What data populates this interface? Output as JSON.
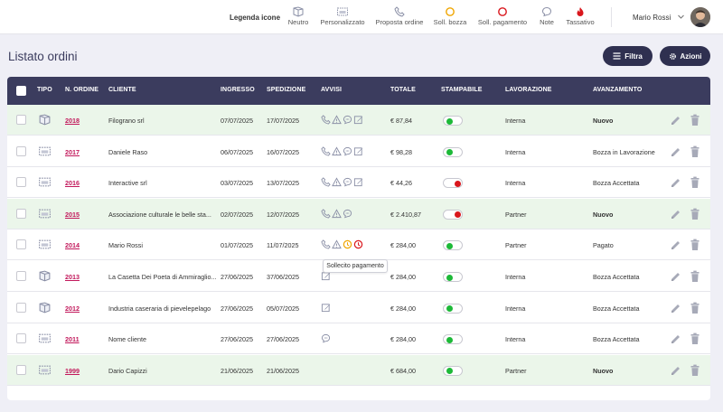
{
  "legend": {
    "title": "Legenda icone",
    "items": [
      {
        "label": "Neutro",
        "icon": "truck-icon"
      },
      {
        "label": "Personalizzato",
        "icon": "box-icon"
      },
      {
        "label": "Proposta ordine",
        "icon": "phone-icon"
      },
      {
        "label": "Soll. bozza",
        "icon": "circle-orange-icon",
        "color": "#f0a500"
      },
      {
        "label": "Soll. pagamento",
        "icon": "circle-red-icon",
        "color": "#d9161c"
      },
      {
        "label": "Note",
        "icon": "chat-icon"
      },
      {
        "label": "Tassativo",
        "icon": "flame-icon",
        "color": "#d9161c"
      }
    ]
  },
  "user": {
    "name": "Mario Rossi"
  },
  "page": {
    "title": "Listato ordini"
  },
  "actions": {
    "filter_label": "Filtra",
    "actions_label": "Azioni"
  },
  "table": {
    "columns": {
      "tipo": "TIPO",
      "numero": "N. ORDINE",
      "cliente": "CLIENTE",
      "ingresso": "INGRESSO",
      "spedizione": "SPEDIZIONE",
      "avvisi": "AVVISI",
      "totale": "TOTALE",
      "stampabile": "STAMPABILE",
      "lavorazione": "LAVORAZIONE",
      "avanzamento": "AVANZAMENTO"
    },
    "rows": [
      {
        "tipo": "neutro",
        "numero": "2018",
        "cliente": "Filograno srl",
        "ingresso": "07/07/2025",
        "spedizione": "17/07/2025",
        "avvisi": [
          "phone",
          "warning",
          "chat",
          "edit"
        ],
        "totale": "€ 87,84",
        "stampabile": true,
        "lavorazione": "Interna",
        "avanzamento": "Nuovo",
        "highlight": true
      },
      {
        "tipo": "personalizzato",
        "numero": "2017",
        "cliente": "Daniele Raso",
        "ingresso": "06/07/2025",
        "spedizione": "16/07/2025",
        "avvisi": [
          "phone",
          "warning",
          "chat",
          "edit"
        ],
        "totale": "€ 98,28",
        "stampabile": true,
        "lavorazione": "Interna",
        "avanzamento": "Bozza in Lavorazione",
        "highlight": false
      },
      {
        "tipo": "personalizzato",
        "numero": "2016",
        "cliente": "Interactive srl",
        "ingresso": "03/07/2025",
        "spedizione": "13/07/2025",
        "avvisi": [
          "phone",
          "warning",
          "chat",
          "edit"
        ],
        "totale": "€ 44,26",
        "stampabile": false,
        "lavorazione": "Interna",
        "avanzamento": "Bozza Accettata",
        "highlight": false
      },
      {
        "tipo": "personalizzato",
        "numero": "2015",
        "cliente": "Associazione culturale le belle sta...",
        "ingresso": "02/07/2025",
        "spedizione": "12/07/2025",
        "avvisi": [
          "phone",
          "warning",
          "chat"
        ],
        "totale": "€ 2.410,87",
        "stampabile": false,
        "lavorazione": "Partner",
        "avanzamento": "Nuovo",
        "highlight": true
      },
      {
        "tipo": "personalizzato",
        "numero": "2014",
        "cliente": "Mario Rossi",
        "ingresso": "01/07/2025",
        "spedizione": "11/07/2025",
        "avvisi": [
          "phone",
          "warning",
          "orange",
          "red"
        ],
        "totale": "€ 284,00",
        "stampabile": true,
        "lavorazione": "Partner",
        "avanzamento": "Pagato",
        "highlight": false
      },
      {
        "tipo": "neutro",
        "numero": "2013",
        "cliente": "La Casetta Dei Poeta di Ammiraglio...",
        "ingresso": "27/06/2025",
        "spedizione": "37/06/2025",
        "avvisi": [
          "edit"
        ],
        "totale": "€ 284,00",
        "stampabile": true,
        "lavorazione": "Interna",
        "avanzamento": "Bozza Accettata",
        "highlight": false
      },
      {
        "tipo": "neutro",
        "numero": "2012",
        "cliente": "Industria caseraria di pievelepelago",
        "ingresso": "27/06/2025",
        "spedizione": "05/07/2025",
        "avvisi": [
          "edit"
        ],
        "totale": "€ 284,00",
        "stampabile": true,
        "lavorazione": "Interna",
        "avanzamento": "Bozza Accettata",
        "highlight": false
      },
      {
        "tipo": "personalizzato",
        "numero": "2011",
        "cliente": "Nome cliente",
        "ingresso": "27/06/2025",
        "spedizione": "27/06/2025",
        "avvisi": [
          "chat"
        ],
        "totale": "€ 284,00",
        "stampabile": true,
        "lavorazione": "Interna",
        "avanzamento": "Bozza Accettata",
        "highlight": false
      },
      {
        "tipo": "personalizzato",
        "numero": "1999",
        "cliente": "Dario Capizzi",
        "ingresso": "21/06/2025",
        "spedizione": "21/06/2025",
        "avvisi": [],
        "totale": "€ 684,00",
        "stampabile": true,
        "lavorazione": "Partner",
        "avanzamento": "Nuovo",
        "highlight": true
      }
    ]
  },
  "tooltip": {
    "text": "Sollecito pagamento"
  }
}
